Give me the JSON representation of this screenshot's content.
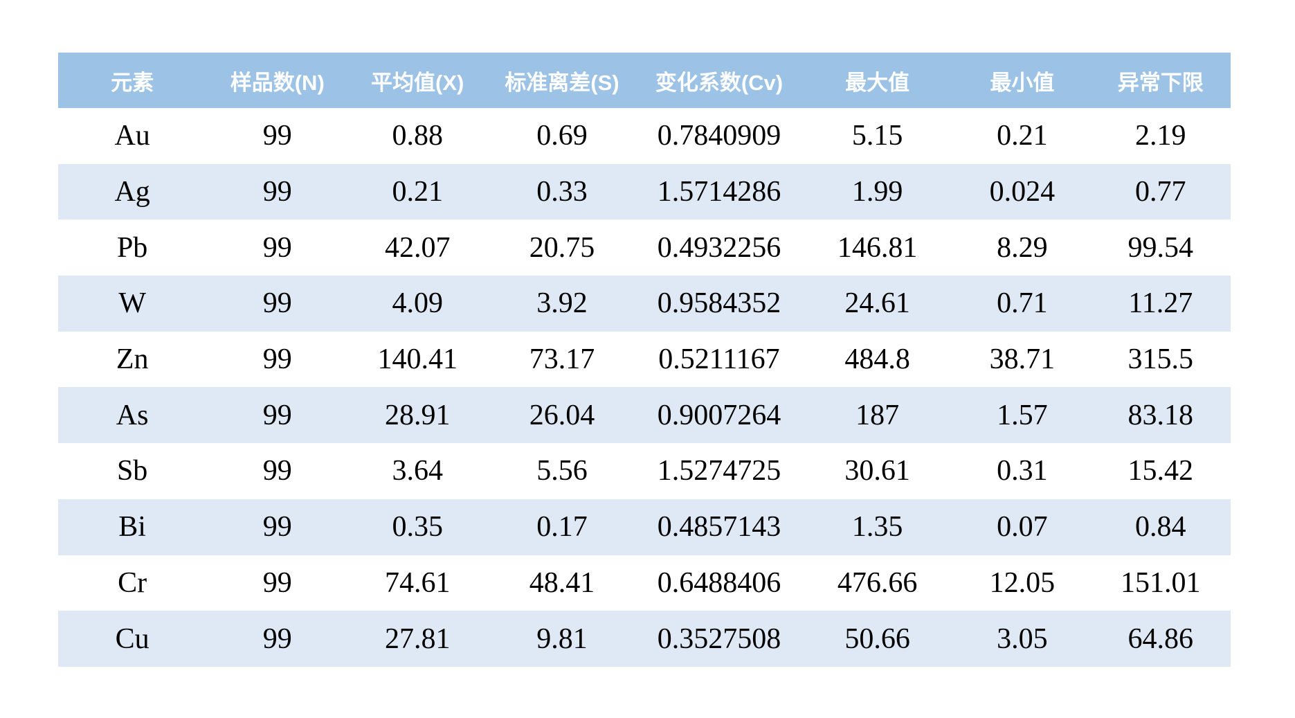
{
  "table": {
    "title_semantic": "element-geochemical-statistics",
    "columns": [
      {
        "key": "element",
        "label": "元素"
      },
      {
        "key": "sample-count-n",
        "label": "样品数(N)"
      },
      {
        "key": "mean-x",
        "label": "平均值(X)"
      },
      {
        "key": "std-dev-s",
        "label": "标准离差(S)"
      },
      {
        "key": "cv",
        "label": "变化系数(Cv)"
      },
      {
        "key": "max-value",
        "label": "最大值"
      },
      {
        "key": "min-value",
        "label": "最小值"
      },
      {
        "key": "anomaly-lower-limit",
        "label": "异常下限"
      }
    ],
    "rows": [
      [
        "Au",
        "99",
        "0.88",
        "0.69",
        "0.7840909",
        "5.15",
        "0.21",
        "2.19"
      ],
      [
        "Ag",
        "99",
        "0.21",
        "0.33",
        "1.5714286",
        "1.99",
        "0.024",
        "0.77"
      ],
      [
        "Pb",
        "99",
        "42.07",
        "20.75",
        "0.4932256",
        "146.81",
        "8.29",
        "99.54"
      ],
      [
        "W",
        "99",
        "4.09",
        "3.92",
        "0.9584352",
        "24.61",
        "0.71",
        "11.27"
      ],
      [
        "Zn",
        "99",
        "140.41",
        "73.17",
        "0.5211167",
        "484.8",
        "38.71",
        "315.5"
      ],
      [
        "As",
        "99",
        "28.91",
        "26.04",
        "0.9007264",
        "187",
        "1.57",
        "83.18"
      ],
      [
        "Sb",
        "99",
        "3.64",
        "5.56",
        "1.5274725",
        "30.61",
        "0.31",
        "15.42"
      ],
      [
        "Bi",
        "99",
        "0.35",
        "0.17",
        "0.4857143",
        "1.35",
        "0.07",
        "0.84"
      ],
      [
        "Cr",
        "99",
        "74.61",
        "48.41",
        "0.6488406",
        "476.66",
        "12.05",
        "151.01"
      ],
      [
        "Cu",
        "99",
        "27.81",
        "9.81",
        "0.3527508",
        "50.66",
        "3.05",
        "64.86"
      ]
    ],
    "colors": {
      "header_bg": "#9cc3e6",
      "header_text": "#ffffff",
      "row_bg": "#ffffff",
      "row_alt_bg": "#dee9f5",
      "cell_text": "#000000"
    }
  }
}
